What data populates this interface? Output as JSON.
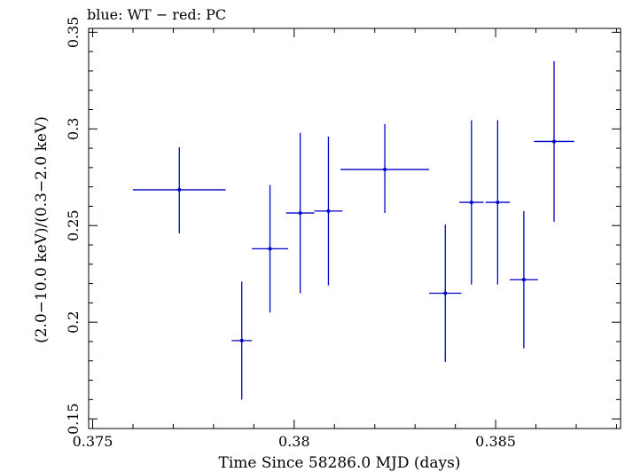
{
  "chart_data": {
    "type": "scatter",
    "title": "blue: WT − red: PC",
    "xlabel": "Time Since 58286.0 MJD (days)",
    "ylabel": "(2.0−10.0 keV)/(0.3−2.0 keV)",
    "xlim": [
      0.3749,
      0.3881
    ],
    "ylim": [
      0.145,
      0.352
    ],
    "x_ticks": [
      {
        "value": 0.375,
        "label": "0.375"
      },
      {
        "value": 0.38,
        "label": "0.38"
      },
      {
        "value": 0.385,
        "label": "0.385"
      }
    ],
    "y_ticks": [
      {
        "value": 0.15,
        "label": "0.15"
      },
      {
        "value": 0.2,
        "label": "0.2"
      },
      {
        "value": 0.25,
        "label": "0.25"
      },
      {
        "value": 0.3,
        "label": "0.3"
      },
      {
        "value": 0.35,
        "label": "0.35"
      }
    ],
    "grid": false,
    "colors": {
      "series": "#0000cc",
      "axis": "#000000"
    },
    "series": [
      {
        "color": "#0000cc",
        "points": [
          {
            "x": 0.37715,
            "xerr": 0.00115,
            "y": 0.2685,
            "yerr_lo": 0.0225,
            "yerr_hi": 0.022
          },
          {
            "x": 0.3787,
            "xerr": 0.00025,
            "y": 0.1905,
            "yerr_lo": 0.0305,
            "yerr_hi": 0.0305
          },
          {
            "x": 0.3794,
            "xerr": 0.00045,
            "y": 0.238,
            "yerr_lo": 0.033,
            "yerr_hi": 0.033
          },
          {
            "x": 0.38015,
            "xerr": 0.00035,
            "y": 0.2565,
            "yerr_lo": 0.0415,
            "yerr_hi": 0.0415
          },
          {
            "x": 0.38085,
            "xerr": 0.00035,
            "y": 0.2575,
            "yerr_lo": 0.0385,
            "yerr_hi": 0.0385
          },
          {
            "x": 0.38225,
            "xerr": 0.0011,
            "y": 0.279,
            "yerr_lo": 0.0225,
            "yerr_hi": 0.0235
          },
          {
            "x": 0.38375,
            "xerr": 0.0004,
            "y": 0.215,
            "yerr_lo": 0.0355,
            "yerr_hi": 0.0355
          },
          {
            "x": 0.3844,
            "xerr": 0.0003,
            "y": 0.262,
            "yerr_lo": 0.0425,
            "yerr_hi": 0.0425
          },
          {
            "x": 0.38505,
            "xerr": 0.0003,
            "y": 0.262,
            "yerr_lo": 0.0425,
            "yerr_hi": 0.0425
          },
          {
            "x": 0.3857,
            "xerr": 0.00035,
            "y": 0.222,
            "yerr_lo": 0.0355,
            "yerr_hi": 0.0355
          },
          {
            "x": 0.38645,
            "xerr": 0.0005,
            "y": 0.2935,
            "yerr_lo": 0.0415,
            "yerr_hi": 0.0415
          }
        ]
      }
    ]
  }
}
